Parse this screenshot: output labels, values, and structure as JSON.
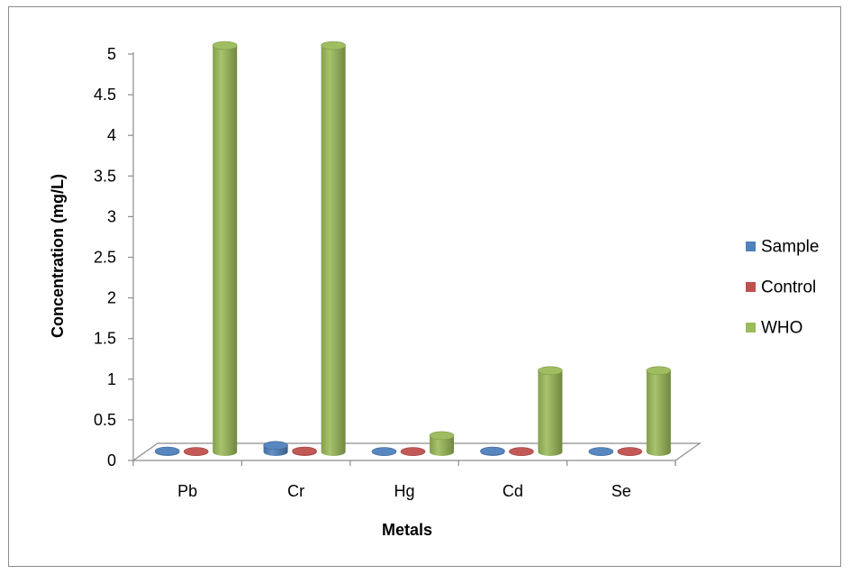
{
  "chart_data": {
    "type": "bar",
    "title": "",
    "xlabel": "Metals",
    "ylabel": "Concentration (mg/L)",
    "categories": [
      "Pb",
      "Cr",
      "Hg",
      "Cd",
      "Se"
    ],
    "ylim": [
      0,
      5
    ],
    "yticks": [
      "0",
      "0.5",
      "1",
      "1.5",
      "2",
      "2.5",
      "3",
      "3.5",
      "4",
      "4.5",
      "5"
    ],
    "grid": false,
    "legend_position": "right",
    "series": [
      {
        "name": "Sample",
        "color": "#4f81bd",
        "values": [
          0.01,
          0.08,
          0.005,
          0.01,
          0.005
        ]
      },
      {
        "name": "Control",
        "color": "#c0504d",
        "values": [
          0.005,
          0.01,
          0.005,
          0.005,
          0.005
        ]
      },
      {
        "name": "WHO",
        "color": "#9bbb59",
        "values": [
          5,
          5,
          0.2,
          1,
          1
        ]
      }
    ]
  }
}
